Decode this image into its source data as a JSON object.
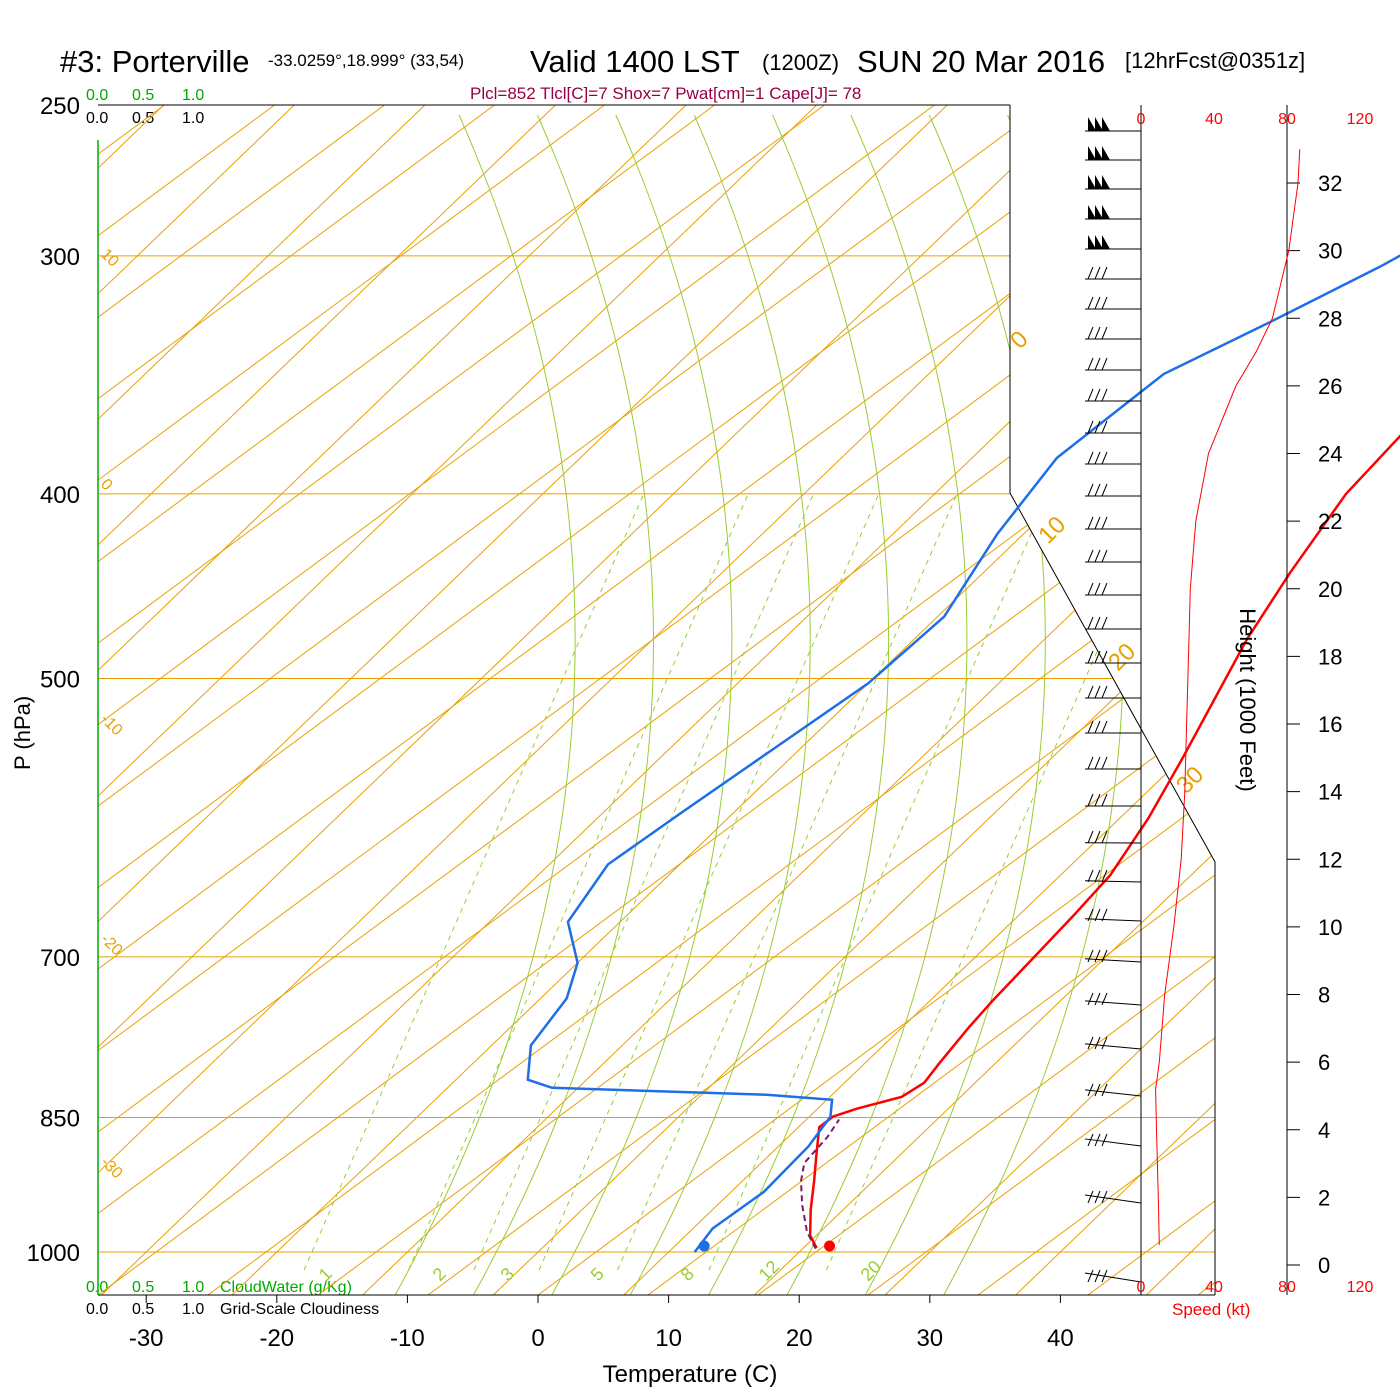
{
  "title": {
    "station": "#3: Porterville",
    "coords": "-33.0259°,18.999° (33,54)",
    "valid": "Valid 1400 LST",
    "zulu": "(1200Z)",
    "date": "SUN 20 Mar 2016",
    "forecast": "[12hrFcst@0351z]",
    "indices": "Plcl=852 Tlcl[C]=7 Shox=7 Pwat[cm]=1 Cape[J]= 78"
  },
  "scales": {
    "cloudwater_ticks": [
      "0.0",
      "0.5",
      "1.0"
    ],
    "cloudiness_ticks": [
      "0.0",
      "0.5",
      "1.0"
    ],
    "cloudwater_label": "CloudWater (g/Kg)",
    "cloudiness_label": "Grid-Scale Cloudiness"
  },
  "colors": {
    "temperature": "#ff0000",
    "dewpoint": "#1e6ee8",
    "isotherm": "#e8a000",
    "moist_adiabat": "#9acd32",
    "indices": "#990044",
    "cloudwater": "#00aa00",
    "wind_speed": "#ff0000"
  },
  "chart_data": {
    "type": "line",
    "subtype": "skew-T log-P sounding",
    "xlabel": "Temperature (C)",
    "ylabel": "P (hPa)",
    "x_ticks": [
      "-30",
      "-20",
      "-10",
      "0",
      "10",
      "20",
      "30",
      "40"
    ],
    "xlim": [
      -34,
      41
    ],
    "pressure_ticks": [
      "250",
      "300",
      "400",
      "500",
      "700",
      "850",
      "1000"
    ],
    "ylim_hpa": [
      1000,
      250
    ],
    "log_pressure": true,
    "isotherm_labels": [
      "10",
      "0",
      "-10",
      "-20",
      "-30",
      "0",
      "10",
      "20",
      "30"
    ],
    "moist_adiabat_labels": [
      "1",
      "2",
      "3",
      "5",
      "8",
      "12",
      "20"
    ],
    "series": [
      {
        "name": "Temperature",
        "points": [
          [
            21,
            995
          ],
          [
            19.5,
            980
          ],
          [
            17.5,
            950
          ],
          [
            15.5,
            918
          ],
          [
            13.5,
            888
          ],
          [
            11.6,
            860
          ],
          [
            11.8,
            849
          ],
          [
            13,
            841
          ],
          [
            15.5,
            829
          ],
          [
            16.1,
            815
          ],
          [
            15.7,
            796
          ],
          [
            15.1,
            762
          ],
          [
            14.8,
            738
          ],
          [
            14.5,
            700
          ],
          [
            14.2,
            665
          ],
          [
            13.8,
            634
          ],
          [
            12.2,
            592
          ],
          [
            10,
            550
          ],
          [
            5.5,
            477
          ],
          [
            3.5,
            440
          ],
          [
            1.5,
            400
          ],
          [
            0.8,
            360
          ],
          [
            0.6,
            340
          ],
          [
            0.3,
            330
          ],
          [
            -0.5,
            315
          ],
          [
            -1.5,
            300
          ],
          [
            -3,
            288
          ],
          [
            -5,
            273
          ],
          [
            -7,
            264
          ]
        ]
      },
      {
        "name": "Dewpoint",
        "points": [
          [
            12,
            1000
          ],
          [
            11.5,
            972
          ],
          [
            12.5,
            930
          ],
          [
            12.3,
            880
          ],
          [
            11.6,
            849
          ],
          [
            10.4,
            832
          ],
          [
            5,
            827
          ],
          [
            -12,
            820
          ],
          [
            -14.5,
            812
          ],
          [
            -17,
            779
          ],
          [
            -18,
            736
          ],
          [
            -20,
            705
          ],
          [
            -24,
            671
          ],
          [
            -25.5,
            626
          ],
          [
            -24,
            588
          ],
          [
            -20,
            503
          ],
          [
            -19.5,
            464
          ],
          [
            -22,
            420
          ],
          [
            -23.5,
            383
          ],
          [
            -22,
            346
          ],
          [
            -18,
            325
          ],
          [
            -14,
            304
          ],
          [
            -11,
            286
          ],
          [
            -9,
            270
          ],
          [
            -7,
            261
          ]
        ]
      },
      {
        "name": "Lifted parcel",
        "style": "dashed",
        "points": [
          [
            21,
            996
          ],
          [
            19,
            976
          ],
          [
            16.5,
            945
          ],
          [
            14.5,
            918
          ],
          [
            13.3,
            898
          ],
          [
            13,
            870
          ],
          [
            12.5,
            852
          ]
        ]
      }
    ],
    "surface_points": [
      {
        "name": "Surface temperature",
        "x": 22.4,
        "p": 1000
      },
      {
        "name": "Surface dewpoint",
        "x": 12.8,
        "p": 1000
      }
    ],
    "height_axis": {
      "label": "Height (1000 Feet)",
      "ticks": [
        "0",
        "2",
        "4",
        "6",
        "8",
        "10",
        "12",
        "14",
        "16",
        "18",
        "20",
        "22",
        "24",
        "26",
        "28",
        "30",
        "32"
      ]
    },
    "wind_speed_axis": {
      "label": "Speed (kt)",
      "ticks": [
        "0",
        "40",
        "80",
        "120"
      ],
      "profile_kft_kt": [
        [
          0.6,
          10
        ],
        [
          2,
          9.5
        ],
        [
          4,
          8.5
        ],
        [
          5.2,
          8
        ],
        [
          6,
          10
        ],
        [
          8,
          13
        ],
        [
          10,
          18
        ],
        [
          12,
          22
        ],
        [
          14,
          24
        ],
        [
          16,
          25
        ],
        [
          18,
          26
        ],
        [
          20,
          27
        ],
        [
          22,
          30
        ],
        [
          24,
          37
        ],
        [
          26,
          52
        ],
        [
          27,
          63
        ],
        [
          28,
          72
        ],
        [
          30,
          81
        ],
        [
          32,
          86
        ],
        [
          33,
          87
        ]
      ]
    },
    "wind_barb_rows": 32
  }
}
